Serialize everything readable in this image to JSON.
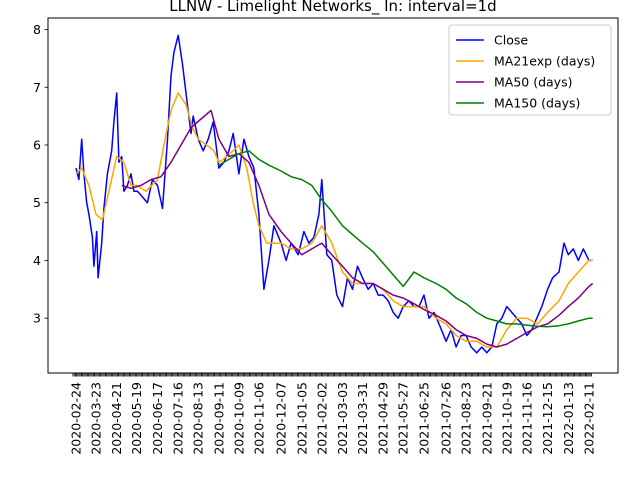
{
  "chart_data": {
    "type": "line",
    "title": "LLNW - Limelight Networks_ In: interval=1d",
    "xlabel": "",
    "ylabel": "",
    "ylim": [
      2.05,
      8.2
    ],
    "yticks": [
      3,
      4,
      5,
      6,
      7,
      8
    ],
    "grid": false,
    "legend_position": "top-right",
    "x_tick_labels": [
      "2020-02-24",
      "2020-03-23",
      "2020-04-21",
      "2020-05-19",
      "2020-06-17",
      "2020-07-16",
      "2020-08-13",
      "2020-09-11",
      "2020-10-09",
      "2020-11-06",
      "2020-12-07",
      "2021-01-05",
      "2021-02-02",
      "2021-03-03",
      "2021-03-31",
      "2021-04-29",
      "2021-05-27",
      "2021-06-25",
      "2021-07-26",
      "2021-08-23",
      "2021-09-21",
      "2021-10-19",
      "2021-11-16",
      "2021-12-15",
      "2022-01-13",
      "2022-02-11"
    ],
    "series": [
      {
        "name": "Close",
        "color": "#0000ff",
        "x": [
          "2020-02-24",
          "2020-02-28",
          "2020-03-03",
          "2020-03-06",
          "2020-03-10",
          "2020-03-13",
          "2020-03-18",
          "2020-03-20",
          "2020-03-24",
          "2020-03-26",
          "2020-03-31",
          "2020-04-03",
          "2020-04-08",
          "2020-04-14",
          "2020-04-17",
          "2020-04-21",
          "2020-04-24",
          "2020-04-28",
          "2020-05-01",
          "2020-05-06",
          "2020-05-11",
          "2020-05-15",
          "2020-05-20",
          "2020-05-27",
          "2020-06-03",
          "2020-06-10",
          "2020-06-17",
          "2020-06-24",
          "2020-07-01",
          "2020-07-06",
          "2020-07-10",
          "2020-07-16",
          "2020-07-22",
          "2020-07-28",
          "2020-08-03",
          "2020-08-06",
          "2020-08-13",
          "2020-08-20",
          "2020-08-27",
          "2020-09-03",
          "2020-09-11",
          "2020-09-18",
          "2020-09-25",
          "2020-10-01",
          "2020-10-09",
          "2020-10-16",
          "2020-10-23",
          "2020-10-30",
          "2020-11-06",
          "2020-11-13",
          "2020-11-20",
          "2020-11-27",
          "2020-12-07",
          "2020-12-14",
          "2020-12-21",
          "2020-12-31",
          "2021-01-08",
          "2021-01-15",
          "2021-01-22",
          "2021-01-29",
          "2021-02-02",
          "2021-02-09",
          "2021-02-16",
          "2021-02-23",
          "2021-03-03",
          "2021-03-10",
          "2021-03-17",
          "2021-03-24",
          "2021-03-31",
          "2021-04-08",
          "2021-04-15",
          "2021-04-22",
          "2021-04-29",
          "2021-05-06",
          "2021-05-13",
          "2021-05-20",
          "2021-05-27",
          "2021-06-04",
          "2021-06-11",
          "2021-06-18",
          "2021-06-25",
          "2021-07-02",
          "2021-07-09",
          "2021-07-16",
          "2021-07-26",
          "2021-08-02",
          "2021-08-09",
          "2021-08-16",
          "2021-08-23",
          "2021-08-30",
          "2021-09-07",
          "2021-09-14",
          "2021-09-21",
          "2021-09-28",
          "2021-10-05",
          "2021-10-12",
          "2021-10-19",
          "2021-10-26",
          "2021-11-02",
          "2021-11-09",
          "2021-11-16",
          "2021-11-23",
          "2021-11-30",
          "2021-12-07",
          "2021-12-15",
          "2021-12-22",
          "2021-12-31",
          "2022-01-07",
          "2022-01-13",
          "2022-01-20",
          "2022-01-27",
          "2022-02-03",
          "2022-02-11",
          "2022-02-16"
        ],
        "values": [
          5.6,
          5.4,
          6.1,
          5.5,
          5.0,
          4.8,
          4.4,
          3.9,
          4.5,
          3.7,
          4.3,
          4.9,
          5.5,
          5.9,
          6.4,
          6.9,
          5.7,
          5.8,
          5.2,
          5.3,
          5.5,
          5.2,
          5.2,
          5.1,
          5.0,
          5.4,
          5.3,
          4.9,
          6.1,
          7.2,
          7.6,
          7.9,
          7.4,
          6.8,
          6.2,
          6.5,
          6.1,
          5.9,
          6.1,
          6.4,
          5.6,
          5.7,
          5.9,
          6.2,
          5.5,
          6.1,
          5.8,
          5.6,
          4.8,
          3.5,
          4.0,
          4.6,
          4.3,
          4.0,
          4.3,
          4.1,
          4.5,
          4.3,
          4.4,
          4.8,
          5.4,
          4.1,
          4.0,
          3.4,
          3.2,
          3.7,
          3.5,
          3.9,
          3.7,
          3.5,
          3.6,
          3.4,
          3.4,
          3.3,
          3.1,
          3.0,
          3.2,
          3.3,
          3.2,
          3.2,
          3.4,
          3.0,
          3.1,
          2.9,
          2.6,
          2.8,
          2.5,
          2.7,
          2.7,
          2.5,
          2.4,
          2.5,
          2.4,
          2.5,
          2.9,
          3.0,
          3.2,
          3.1,
          3.0,
          2.9,
          2.7,
          2.8,
          3.0,
          3.2,
          3.5,
          3.7,
          3.8,
          4.3,
          4.1,
          4.2,
          4.0,
          4.2,
          4.0,
          4.0
        ]
      },
      {
        "name": "MA21exp (days)",
        "color": "#ffa500",
        "x": [
          "2020-02-24",
          "2020-03-03",
          "2020-03-13",
          "2020-03-23",
          "2020-04-01",
          "2020-04-10",
          "2020-04-21",
          "2020-05-01",
          "2020-05-11",
          "2020-05-19",
          "2020-06-01",
          "2020-06-17",
          "2020-06-26",
          "2020-07-06",
          "2020-07-16",
          "2020-07-27",
          "2020-08-05",
          "2020-08-13",
          "2020-08-25",
          "2020-09-04",
          "2020-09-11",
          "2020-09-22",
          "2020-10-01",
          "2020-10-09",
          "2020-10-20",
          "2020-10-29",
          "2020-11-06",
          "2020-11-17",
          "2020-12-07",
          "2020-12-21",
          "2021-01-05",
          "2021-01-19",
          "2021-02-02",
          "2021-02-16",
          "2021-03-03",
          "2021-03-17",
          "2021-03-31",
          "2021-04-15",
          "2021-04-29",
          "2021-05-13",
          "2021-05-27",
          "2021-06-11",
          "2021-06-25",
          "2021-07-12",
          "2021-07-26",
          "2021-08-09",
          "2021-08-23",
          "2021-09-07",
          "2021-09-21",
          "2021-10-05",
          "2021-10-19",
          "2021-11-02",
          "2021-11-16",
          "2021-12-01",
          "2021-12-15",
          "2021-12-31",
          "2022-01-13",
          "2022-01-27",
          "2022-02-11",
          "2022-02-16"
        ],
        "values": [
          5.5,
          5.6,
          5.3,
          4.8,
          4.7,
          5.2,
          5.8,
          5.7,
          5.3,
          5.3,
          5.2,
          5.4,
          6.0,
          6.6,
          6.9,
          6.7,
          6.3,
          6.1,
          6.0,
          5.9,
          5.7,
          5.8,
          5.9,
          6.0,
          5.6,
          5.0,
          4.6,
          4.3,
          4.3,
          4.2,
          4.2,
          4.3,
          4.6,
          4.3,
          3.8,
          3.6,
          3.6,
          3.6,
          3.5,
          3.3,
          3.2,
          3.2,
          3.2,
          3.0,
          2.9,
          2.7,
          2.6,
          2.6,
          2.5,
          2.5,
          2.8,
          3.0,
          3.0,
          2.9,
          3.1,
          3.3,
          3.6,
          3.8,
          4.0,
          4.0
        ]
      },
      {
        "name": "MA50 (days)",
        "color": "#800080",
        "x": [
          "2020-04-28",
          "2020-05-11",
          "2020-05-25",
          "2020-06-08",
          "2020-06-22",
          "2020-07-06",
          "2020-07-20",
          "2020-08-03",
          "2020-08-17",
          "2020-08-31",
          "2020-09-11",
          "2020-09-25",
          "2020-10-09",
          "2020-10-23",
          "2020-11-06",
          "2020-11-20",
          "2020-12-07",
          "2020-12-21",
          "2021-01-05",
          "2021-01-19",
          "2021-02-02",
          "2021-02-16",
          "2021-03-03",
          "2021-03-17",
          "2021-03-31",
          "2021-04-15",
          "2021-04-29",
          "2021-05-13",
          "2021-05-27",
          "2021-06-11",
          "2021-06-25",
          "2021-07-12",
          "2021-07-26",
          "2021-08-09",
          "2021-08-23",
          "2021-09-07",
          "2021-09-21",
          "2021-10-05",
          "2021-10-19",
          "2021-11-02",
          "2021-11-16",
          "2021-12-01",
          "2021-12-15",
          "2021-12-31",
          "2022-01-13",
          "2022-01-27",
          "2022-02-11",
          "2022-02-16"
        ],
        "values": [
          5.3,
          5.25,
          5.3,
          5.4,
          5.45,
          5.7,
          6.0,
          6.3,
          6.45,
          6.6,
          6.1,
          5.8,
          5.85,
          5.7,
          5.3,
          4.8,
          4.5,
          4.3,
          4.1,
          4.2,
          4.3,
          4.1,
          3.9,
          3.7,
          3.6,
          3.6,
          3.5,
          3.4,
          3.35,
          3.25,
          3.15,
          3.05,
          2.95,
          2.8,
          2.7,
          2.65,
          2.55,
          2.5,
          2.55,
          2.65,
          2.75,
          2.85,
          2.9,
          3.05,
          3.2,
          3.35,
          3.55,
          3.6
        ]
      },
      {
        "name": "MA150 (days)",
        "color": "#008000",
        "x": [
          "2020-09-11",
          "2020-09-25",
          "2020-10-09",
          "2020-10-23",
          "2020-11-06",
          "2020-11-20",
          "2020-12-07",
          "2020-12-21",
          "2021-01-05",
          "2021-01-19",
          "2021-02-02",
          "2021-02-16",
          "2021-03-03",
          "2021-03-17",
          "2021-03-31",
          "2021-04-15",
          "2021-04-29",
          "2021-05-13",
          "2021-05-27",
          "2021-06-11",
          "2021-06-25",
          "2021-07-12",
          "2021-07-26",
          "2021-08-09",
          "2021-08-23",
          "2021-09-07",
          "2021-09-21",
          "2021-10-05",
          "2021-10-19",
          "2021-11-02",
          "2021-11-16",
          "2021-12-01",
          "2021-12-15",
          "2021-12-31",
          "2022-01-13",
          "2022-01-27",
          "2022-02-11",
          "2022-02-16"
        ],
        "values": [
          5.65,
          5.75,
          5.85,
          5.9,
          5.75,
          5.65,
          5.55,
          5.45,
          5.4,
          5.3,
          5.05,
          4.85,
          4.6,
          4.45,
          4.3,
          4.15,
          3.95,
          3.75,
          3.55,
          3.8,
          3.7,
          3.6,
          3.5,
          3.35,
          3.25,
          3.1,
          3.0,
          2.95,
          2.9,
          2.9,
          2.88,
          2.86,
          2.85,
          2.87,
          2.9,
          2.95,
          3.0,
          3.0
        ]
      }
    ]
  }
}
